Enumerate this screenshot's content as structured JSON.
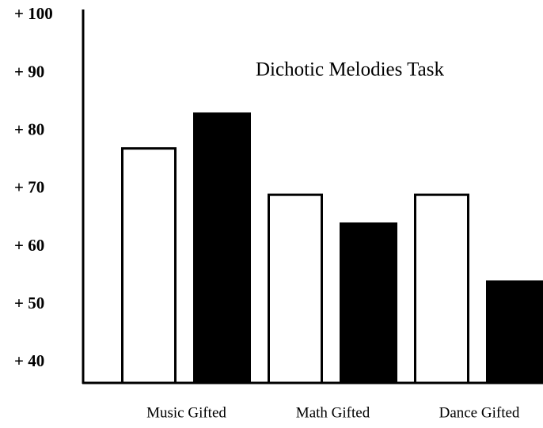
{
  "chart_data": {
    "type": "bar",
    "title": "Dichotic Melodies Task",
    "categories": [
      "Music Gifted",
      "Math Gifted",
      "Dance Gifted"
    ],
    "series": [
      {
        "color": "#ffffff",
        "values": [
          77,
          69,
          69
        ]
      },
      {
        "color": "#000000",
        "values": [
          83,
          64,
          54
        ]
      }
    ],
    "ylim": [
      36.5,
      101
    ],
    "yticks": [
      {
        "value": 40,
        "label": "+ 40"
      },
      {
        "value": 50,
        "label": "+ 50"
      },
      {
        "value": 60,
        "label": "+ 60"
      },
      {
        "value": 70,
        "label": "+ 70"
      },
      {
        "value": 80,
        "label": "+ 80"
      },
      {
        "value": 90,
        "label": "+ 90"
      },
      {
        "value": 100,
        "label": "+ 100"
      }
    ],
    "grid": false
  }
}
